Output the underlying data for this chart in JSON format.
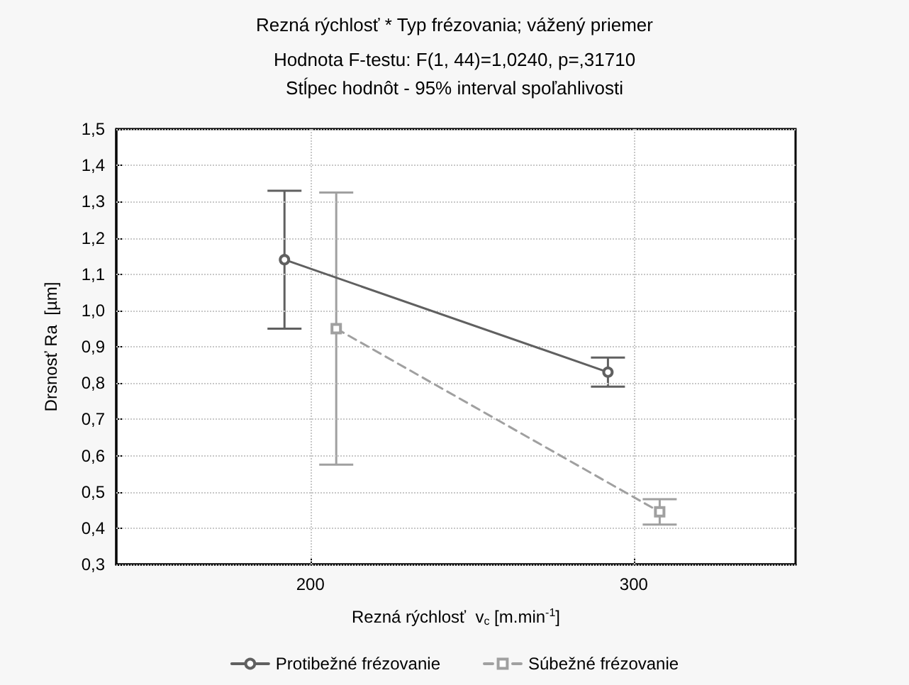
{
  "chart_data": {
    "type": "line",
    "title": "Rezná rýchlosť * Typ frézovania; vážený priemer",
    "subtitle": "Hodnota F-testu: F(1, 44)=1,0240, p=,31710\nStĺpec hodnôt - 95% interval spoľahlivosti",
    "xlabel": "Rezná rýchlosť  v$_{c}$ [m.min$^{-1}$]",
    "ylabel": "Drsnosť Ra  [µm]",
    "xlim": [
      140,
      350
    ],
    "xticks": [
      200,
      300
    ],
    "ylim": [
      0.3,
      1.5
    ],
    "yticks": [
      {
        "value": 0.3,
        "label": "0,3"
      },
      {
        "value": 0.4,
        "label": "0,4"
      },
      {
        "value": 0.5,
        "label": "0,5"
      },
      {
        "value": 0.6,
        "label": "0,6"
      },
      {
        "value": 0.7,
        "label": "0,7"
      },
      {
        "value": 0.8,
        "label": "0,8"
      },
      {
        "value": 0.9,
        "label": "0,9"
      },
      {
        "value": 1.0,
        "label": "1,0"
      },
      {
        "value": 1.1,
        "label": "1,1"
      },
      {
        "value": 1.2,
        "label": "1,2"
      },
      {
        "value": 1.3,
        "label": "1,3"
      },
      {
        "value": 1.4,
        "label": "1,4"
      },
      {
        "value": 1.5,
        "label": "1,5"
      }
    ],
    "grid": true,
    "legend": "bottom",
    "series": [
      {
        "name": "Protibežné frézovanie",
        "color": "#606060",
        "marker": "circle",
        "line_style": "solid",
        "x": [
          192,
          292
        ],
        "values": [
          1.14,
          0.83
        ],
        "errors": [
          [
            0.95,
            1.33
          ],
          [
            0.79,
            0.87
          ]
        ]
      },
      {
        "name": "Súbežné frézovanie",
        "color": "#a0a0a0",
        "marker": "square",
        "line_style": "dashed",
        "x": [
          208,
          308
        ],
        "values": [
          0.95,
          0.445
        ],
        "errors": [
          [
            0.575,
            1.325
          ],
          [
            0.41,
            0.48
          ]
        ]
      }
    ]
  }
}
